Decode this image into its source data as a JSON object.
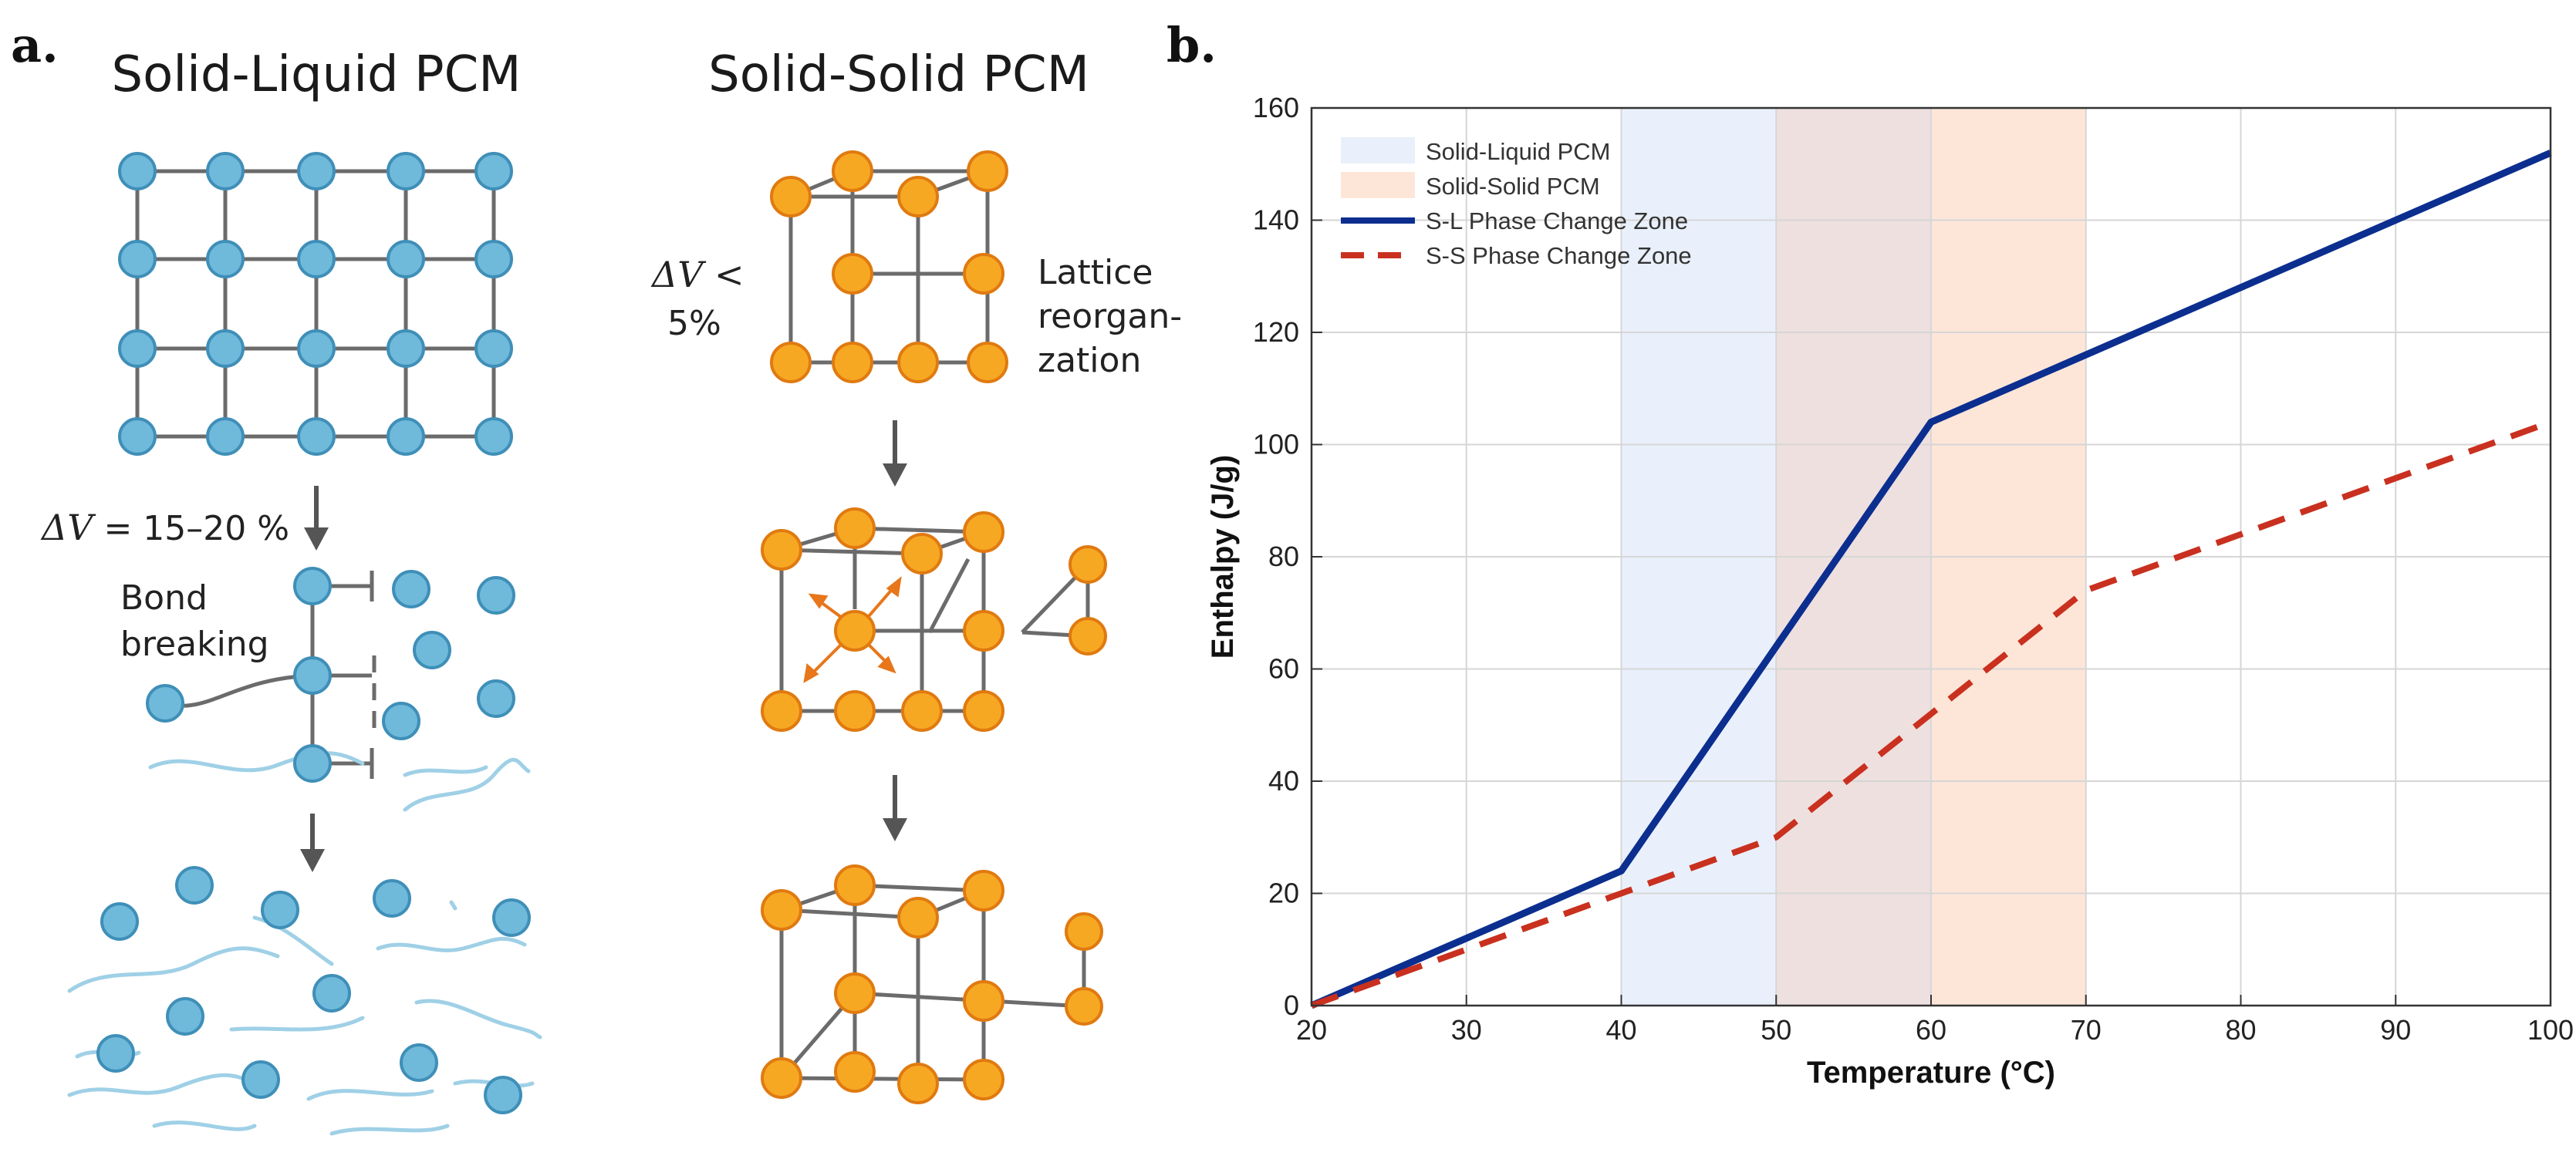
{
  "panel_a": {
    "letter": "a.",
    "left_heading": "Solid-Liquid PCM",
    "right_heading": "Solid-Solid PCM",
    "dv_sl_prefix": "ΔV",
    "dv_sl_value": " = 15–20 %",
    "bond_line1": "Bond",
    "bond_line2": "breaking",
    "dv_ss_line1": "ΔV <",
    "dv_ss_line2": "5%",
    "lattice_line1": "Lattice",
    "lattice_line2": "reorgan-",
    "lattice_line3": "zation"
  },
  "colors": {
    "blue_atom": "#6fb9db",
    "blue_edge": "#3f8fb8",
    "orange_atom": "#f7a823",
    "orange_edge": "#e07a10",
    "bond": "#6b6b6b",
    "wave": "#9fd0e6",
    "sl_line": "#0b2e8f",
    "ss_line": "#c9301f",
    "sl_band": "#e9f0fb",
    "overlap_band": "#eee0df",
    "ss_band": "#fde6d8"
  },
  "panel_b": {
    "letter": "b."
  },
  "chart_data": {
    "type": "line",
    "xlabel": "Temperature (°C)",
    "ylabel": "Enthalpy (J/g)",
    "xlim": [
      20,
      100
    ],
    "ylim": [
      0,
      160
    ],
    "xticks": [
      20,
      30,
      40,
      50,
      60,
      70,
      80,
      90,
      100
    ],
    "yticks": [
      0,
      20,
      40,
      60,
      80,
      100,
      120,
      140,
      160
    ],
    "grid": true,
    "legend_position": "top-left",
    "bands": [
      {
        "name": "Solid-Liquid PCM",
        "x0": 40,
        "x1": 50
      },
      {
        "name": "overlap",
        "x0": 50,
        "x1": 60
      },
      {
        "name": "Solid-Solid PCM",
        "x0": 60,
        "x1": 70
      }
    ],
    "legend": [
      "Solid-Liquid PCM",
      "Solid-Solid PCM",
      "S-L Phase Change Zone",
      "S-S Phase Change Zone"
    ],
    "series": [
      {
        "name": "S-L Phase Change Zone",
        "style": "solid",
        "x": [
          20,
          40,
          60,
          100
        ],
        "y": [
          0,
          24,
          104,
          152
        ]
      },
      {
        "name": "S-S Phase Change Zone",
        "style": "dashed",
        "x": [
          20,
          40,
          50,
          60,
          70,
          80,
          90,
          100
        ],
        "y": [
          0,
          20,
          30,
          52,
          74,
          84,
          94,
          104
        ]
      }
    ]
  }
}
